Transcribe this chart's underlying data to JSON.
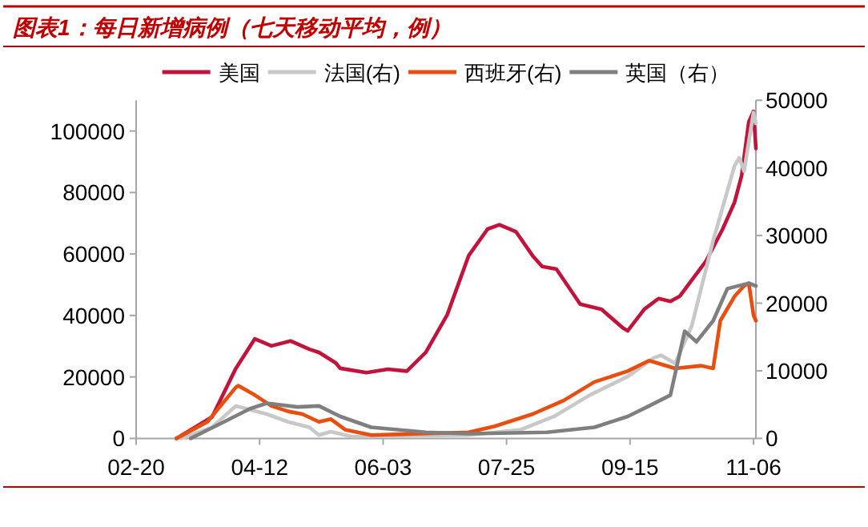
{
  "chart_data": {
    "type": "line",
    "title": "图表1：每日新增病例（七天移动平均，例）",
    "legend": "top",
    "grid": false,
    "marker": "none",
    "line_style": "solid",
    "xlim": [
      "--02-20",
      "--11-07"
    ],
    "xticks": [
      {
        "value": "--02-20",
        "label": "02-20"
      },
      {
        "value": "--04-12",
        "label": "04-12"
      },
      {
        "value": "--06-03",
        "label": "06-03"
      },
      {
        "value": "--07-25",
        "label": "07-25"
      },
      {
        "value": "--09-15",
        "label": "09-15"
      },
      {
        "value": "--11-06",
        "label": "11-06"
      }
    ],
    "ylim": [
      0,
      110000
    ],
    "yticks": [
      0,
      20000,
      40000,
      60000,
      80000,
      100000
    ],
    "y2lim": [
      0,
      50000
    ],
    "y2ticks": [
      0,
      10000,
      20000,
      30000,
      40000,
      50000
    ],
    "series": [
      {
        "name": "美国",
        "color": "#c0143c",
        "x": [
          "--03-08",
          "--03-23",
          "--04-02",
          "--04-10",
          "--04-17",
          "--04-25",
          "--05-03",
          "--05-07",
          "--05-14",
          "--05-16",
          "--05-27",
          "--06-05",
          "--06-13",
          "--06-21",
          "--06-30",
          "--07-09",
          "--07-17",
          "--07-22",
          "--07-29",
          "--08-05",
          "--08-09",
          "--08-15",
          "--08-25",
          "--09-03",
          "--09-12",
          "--09-14",
          "--09-21",
          "--09-27",
          "--10-02",
          "--10-06",
          "--10-17",
          "--10-24",
          "--10-29",
          "--11-01",
          "--11-04",
          "--11-06",
          "--11-07"
        ],
        "values": [
          0,
          7000,
          22800,
          32400,
          30100,
          31700,
          29000,
          28000,
          24600,
          22800,
          21400,
          22500,
          21900,
          28000,
          40200,
          59400,
          68100,
          69500,
          67200,
          59400,
          55900,
          55100,
          43700,
          42000,
          35900,
          35000,
          42000,
          45500,
          44600,
          46300,
          57700,
          68100,
          76800,
          85500,
          102900,
          106400,
          94300
        ]
      },
      {
        "name": "法国(右)",
        "color": "#c8c8c8",
        "axis": "y2",
        "x": [
          "--03-10",
          "--03-23",
          "--04-02",
          "--04-15",
          "--04-24",
          "--05-03",
          "--05-07",
          "--05-12",
          "--05-21",
          "--07-09",
          "--07-31",
          "--08-14",
          "--08-29",
          "--09-14",
          "--09-25",
          "--09-28",
          "--10-04",
          "--10-11",
          "--10-20",
          "--10-29",
          "--10-31",
          "--11-02",
          "--11-06",
          "--11-07"
        ],
        "values": [
          0,
          1650,
          4800,
          3600,
          2450,
          1650,
          500,
          1000,
          250,
          500,
          1300,
          3250,
          6400,
          9150,
          11900,
          12300,
          11100,
          16650,
          29250,
          40300,
          41500,
          39500,
          48200,
          46600
        ]
      },
      {
        "name": "西班牙(右)",
        "color": "#e84e0f",
        "axis": "y2",
        "x": [
          "--03-08",
          "--03-21",
          "--04-02",
          "--04-03",
          "--04-10",
          "--04-17",
          "--04-24",
          "--04-30",
          "--05-07",
          "--05-12",
          "--05-18",
          "--05-29",
          "--07-09",
          "--07-20",
          "--08-05",
          "--08-18",
          "--08-31",
          "--09-14",
          "--09-23",
          "--10-04",
          "--10-15",
          "--10-20",
          "--10-23",
          "--10-29",
          "--11-02",
          "--11-04",
          "--11-06",
          "--11-07"
        ],
        "values": [
          0,
          2450,
          7550,
          7800,
          6400,
          4800,
          4000,
          3600,
          2450,
          2850,
          1300,
          500,
          900,
          1800,
          3600,
          5600,
          8350,
          9950,
          11500,
          10350,
          10750,
          10350,
          17400,
          21000,
          22550,
          22950,
          18200,
          17400
        ]
      },
      {
        "name": "英国（右）",
        "color": "#7f7f7f",
        "axis": "y2",
        "x": [
          "--03-14",
          "--03-28",
          "--04-08",
          "--04-15",
          "--04-28",
          "--05-07",
          "--05-16",
          "--05-29",
          "--06-21",
          "--07-09",
          "--08-11",
          "--08-31",
          "--09-14",
          "--09-23",
          "--10-02",
          "--10-08",
          "--10-13",
          "--10-20",
          "--10-26",
          "--11-04",
          "--11-07"
        ],
        "values": [
          0,
          2450,
          4400,
          5200,
          4650,
          4800,
          3250,
          1650,
          900,
          700,
          900,
          1650,
          3250,
          4800,
          6400,
          15850,
          14300,
          17400,
          22150,
          22950,
          22550
        ]
      }
    ]
  }
}
